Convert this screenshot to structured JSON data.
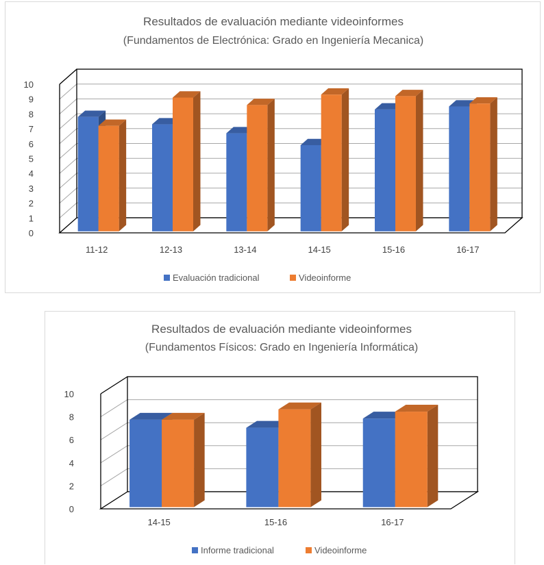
{
  "chart_data": [
    {
      "type": "bar",
      "title": "Resultados de evaluación mediante videoinformes",
      "subtitle": "(Fundamentos de Electrónica: Grado en Ingeniería Mecanica)",
      "categories": [
        "11-12",
        "12-13",
        "13-14",
        "14-15",
        "15-16",
        "16-17"
      ],
      "series": [
        {
          "name": "Evaluación tradicional",
          "color": "#4472C4",
          "values": [
            7.7,
            7.2,
            6.6,
            5.8,
            8.2,
            8.4
          ]
        },
        {
          "name": "Videoinforme",
          "color": "#ED7D31",
          "values": [
            7.1,
            9.0,
            8.5,
            9.2,
            9.1,
            8.6
          ]
        }
      ],
      "yticks": [
        "0",
        "1",
        "2",
        "3",
        "4",
        "5",
        "6",
        "7",
        "8",
        "9",
        "10"
      ],
      "ylim": [
        0,
        10
      ],
      "grid": true,
      "legend": "bottom"
    },
    {
      "type": "bar",
      "title": "Resultados de evaluación mediante videoinformes",
      "subtitle": "(Fundamentos Físicos: Grado en Ingeniería Informática)",
      "categories": [
        "14-15",
        "15-16",
        "16-17"
      ],
      "series": [
        {
          "name": "Informe tradicional",
          "color": "#4472C4",
          "values": [
            7.6,
            6.9,
            7.7
          ]
        },
        {
          "name": "Videoinforme",
          "color": "#ED7D31",
          "values": [
            7.6,
            8.5,
            8.3
          ]
        }
      ],
      "yticks": [
        "0",
        "2",
        "4",
        "6",
        "8",
        "10"
      ],
      "ylim": [
        0,
        10
      ],
      "grid": true,
      "legend": "bottom"
    }
  ]
}
